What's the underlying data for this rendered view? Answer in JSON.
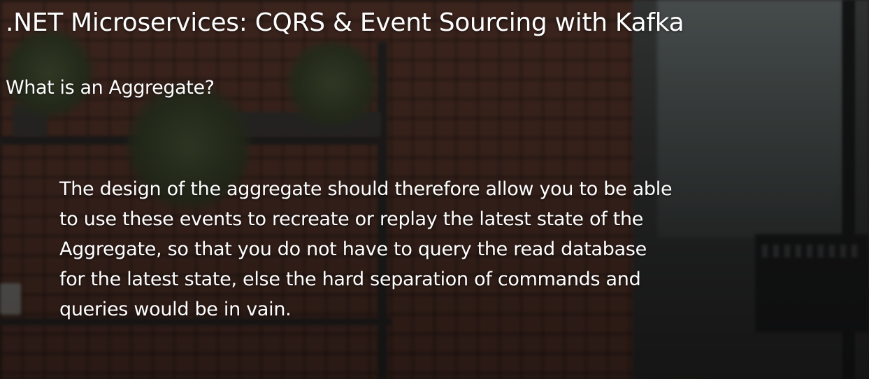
{
  "course": {
    "title": ".NET Microservices: CQRS & Event Sourcing with Kafka"
  },
  "slide": {
    "heading": "What is an Aggregate?",
    "body_lines": [
      "The design of the aggregate should therefore allow you to be able",
      "to use these events to recreate or replay the latest state of the",
      "Aggregate, so that you do not have to query the read database",
      "for the latest state, else the hard separation of commands and",
      "queries would be in vain."
    ]
  },
  "colors": {
    "text": "#ffffff",
    "brick": "#5b372c",
    "background_dark": "#2a2624"
  }
}
